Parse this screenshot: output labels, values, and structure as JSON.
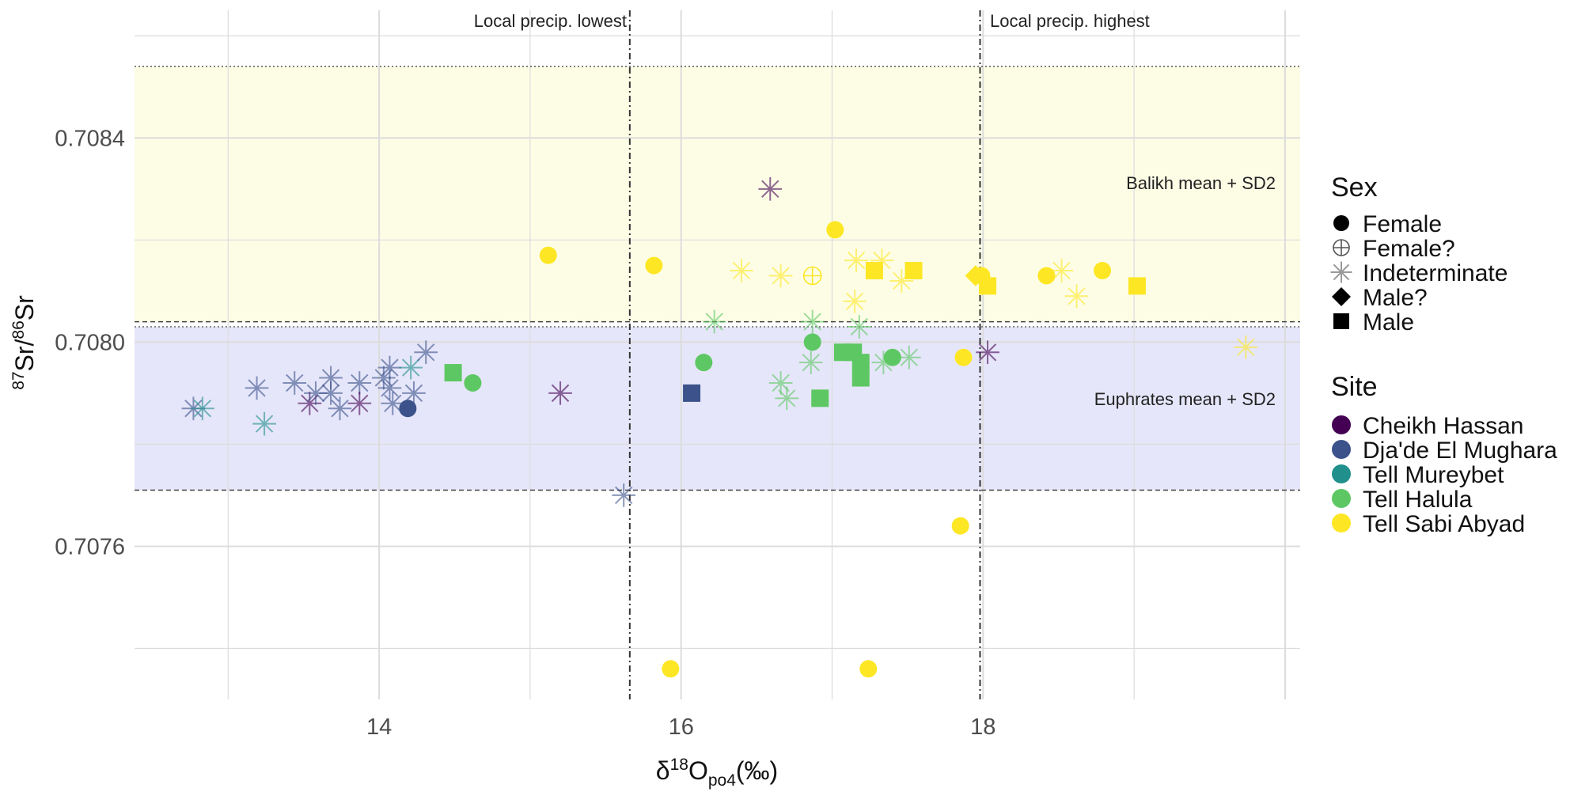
{
  "chart_data": {
    "type": "scatter",
    "xlabel": "δ18Opo4(‰)",
    "ylabel": "87Sr/86Sr",
    "xlim": [
      12.38,
      20.1
    ],
    "ylim": [
      0.7073,
      0.70865
    ],
    "x_ticks": [
      "14",
      "16",
      "18"
    ],
    "x_tick_values": [
      14,
      16,
      18
    ],
    "y_ticks": [
      "0.7076",
      "0.7080",
      "0.7084"
    ],
    "y_tick_values": [
      0.7076,
      0.708,
      0.7084
    ],
    "grid": true,
    "bands": [
      {
        "label": "Balikh mean + SD2",
        "y_from": 0.70804,
        "y_to": 0.70854,
        "color": "#fdfde6"
      },
      {
        "label": "Euphrates mean + SD2",
        "y_from": 0.70771,
        "y_to": 0.70803,
        "color": "#e6e6fa"
      }
    ],
    "vlines": [
      {
        "label": "Local precip. lowest",
        "x": 15.66
      },
      {
        "label": "Local precip. highest",
        "x": 17.98
      }
    ],
    "legend_placement": "right",
    "sex_legend": {
      "title": "Sex",
      "items": [
        {
          "name": "Female",
          "shape": "circle"
        },
        {
          "name": "Female?",
          "shape": "circle-plus"
        },
        {
          "name": "Indeterminate",
          "shape": "asterisk"
        },
        {
          "name": "Male?",
          "shape": "diamond"
        },
        {
          "name": "Male",
          "shape": "square"
        }
      ]
    },
    "site_legend": {
      "title": "Site",
      "items": [
        {
          "name": "Cheikh Hassan",
          "color": "#440154"
        },
        {
          "name": "Dja'de El Mughara",
          "color": "#3b528b"
        },
        {
          "name": "Tell Mureybet",
          "color": "#21908c"
        },
        {
          "name": "Tell Halula",
          "color": "#5dc863"
        },
        {
          "name": "Tell Sabi Abyad",
          "color": "#fde725"
        }
      ]
    },
    "points_columns": [
      "x",
      "y",
      "site",
      "sex"
    ],
    "points": [
      [
        12.77,
        0.70787,
        "Dja'de El Mughara",
        "Indeterminate"
      ],
      [
        12.83,
        0.70787,
        "Tell Mureybet",
        "Indeterminate"
      ],
      [
        13.19,
        0.70791,
        "Dja'de El Mughara",
        "Indeterminate"
      ],
      [
        13.24,
        0.70784,
        "Tell Mureybet",
        "Indeterminate"
      ],
      [
        13.44,
        0.70792,
        "Dja'de El Mughara",
        "Indeterminate"
      ],
      [
        13.54,
        0.70788,
        "Cheikh Hassan",
        "Indeterminate"
      ],
      [
        13.58,
        0.7079,
        "Dja'de El Mughara",
        "Indeterminate"
      ],
      [
        13.68,
        0.70793,
        "Dja'de El Mughara",
        "Indeterminate"
      ],
      [
        13.68,
        0.7079,
        "Dja'de El Mughara",
        "Indeterminate"
      ],
      [
        13.74,
        0.70787,
        "Dja'de El Mughara",
        "Indeterminate"
      ],
      [
        13.87,
        0.70792,
        "Dja'de El Mughara",
        "Indeterminate"
      ],
      [
        13.87,
        0.70788,
        "Cheikh Hassan",
        "Indeterminate"
      ],
      [
        14.03,
        0.70793,
        "Dja'de El Mughara",
        "Indeterminate"
      ],
      [
        14.07,
        0.70795,
        "Dja'de El Mughara",
        "Indeterminate"
      ],
      [
        14.07,
        0.70791,
        "Dja'de El Mughara",
        "Indeterminate"
      ],
      [
        14.09,
        0.70788,
        "Dja'de El Mughara",
        "Indeterminate"
      ],
      [
        14.21,
        0.70795,
        "Tell Mureybet",
        "Indeterminate"
      ],
      [
        14.23,
        0.7079,
        "Dja'de El Mughara",
        "Indeterminate"
      ],
      [
        14.31,
        0.70798,
        "Dja'de El Mughara",
        "Indeterminate"
      ],
      [
        14.19,
        0.70787,
        "Dja'de El Mughara",
        "Female"
      ],
      [
        14.49,
        0.70794,
        "Tell Halula",
        "Male"
      ],
      [
        14.62,
        0.70792,
        "Tell Halula",
        "Female"
      ],
      [
        15.2,
        0.7079,
        "Cheikh Hassan",
        "Indeterminate"
      ],
      [
        15.62,
        0.7077,
        "Dja'de El Mughara",
        "Indeterminate"
      ],
      [
        15.12,
        0.70817,
        "Tell Sabi Abyad",
        "Female"
      ],
      [
        15.82,
        0.70815,
        "Tell Sabi Abyad",
        "Female"
      ],
      [
        16.07,
        0.7079,
        "Dja'de El Mughara",
        "Male"
      ],
      [
        16.22,
        0.70804,
        "Tell Halula",
        "Indeterminate"
      ],
      [
        16.15,
        0.70796,
        "Tell Halula",
        "Female"
      ],
      [
        16.4,
        0.70814,
        "Tell Sabi Abyad",
        "Indeterminate"
      ],
      [
        16.59,
        0.7083,
        "Cheikh Hassan",
        "Indeterminate"
      ],
      [
        16.66,
        0.70813,
        "Tell Sabi Abyad",
        "Indeterminate"
      ],
      [
        16.66,
        0.70792,
        "Tell Halula",
        "Indeterminate"
      ],
      [
        16.7,
        0.70789,
        "Tell Halula",
        "Indeterminate"
      ],
      [
        16.87,
        0.70813,
        "Tell Sabi Abyad",
        "Female?"
      ],
      [
        16.87,
        0.70804,
        "Tell Halula",
        "Indeterminate"
      ],
      [
        16.86,
        0.70796,
        "Tell Halula",
        "Indeterminate"
      ],
      [
        16.87,
        0.708,
        "Tell Halula",
        "Female"
      ],
      [
        16.92,
        0.70789,
        "Tell Halula",
        "Male"
      ],
      [
        17.02,
        0.70822,
        "Tell Sabi Abyad",
        "Female"
      ],
      [
        17.07,
        0.70798,
        "Tell Halula",
        "Male"
      ],
      [
        17.14,
        0.70798,
        "Tell Halula",
        "Male"
      ],
      [
        17.19,
        0.70796,
        "Tell Halula",
        "Male"
      ],
      [
        17.19,
        0.70793,
        "Tell Halula",
        "Male"
      ],
      [
        17.18,
        0.70803,
        "Tell Halula",
        "Indeterminate"
      ],
      [
        17.16,
        0.70816,
        "Tell Sabi Abyad",
        "Indeterminate"
      ],
      [
        17.15,
        0.70808,
        "Tell Sabi Abyad",
        "Indeterminate"
      ],
      [
        17.33,
        0.70816,
        "Tell Sabi Abyad",
        "Indeterminate"
      ],
      [
        17.28,
        0.70814,
        "Tell Sabi Abyad",
        "Male"
      ],
      [
        17.4,
        0.70797,
        "Tell Halula",
        "Female"
      ],
      [
        17.34,
        0.70796,
        "Tell Halula",
        "Indeterminate"
      ],
      [
        17.51,
        0.70797,
        "Tell Halula",
        "Indeterminate"
      ],
      [
        17.46,
        0.70812,
        "Tell Sabi Abyad",
        "Indeterminate"
      ],
      [
        17.54,
        0.70814,
        "Tell Sabi Abyad",
        "Male"
      ],
      [
        17.87,
        0.70797,
        "Tell Sabi Abyad",
        "Female"
      ],
      [
        17.85,
        0.70764,
        "Tell Sabi Abyad",
        "Female"
      ],
      [
        17.95,
        0.70813,
        "Tell Sabi Abyad",
        "Male?"
      ],
      [
        17.99,
        0.70813,
        "Tell Sabi Abyad",
        "Female"
      ],
      [
        18.03,
        0.70811,
        "Tell Sabi Abyad",
        "Male"
      ],
      [
        18.03,
        0.70798,
        "Cheikh Hassan",
        "Indeterminate"
      ],
      [
        18.42,
        0.70813,
        "Tell Sabi Abyad",
        "Female"
      ],
      [
        18.52,
        0.70814,
        "Tell Sabi Abyad",
        "Indeterminate"
      ],
      [
        18.62,
        0.70809,
        "Tell Sabi Abyad",
        "Indeterminate"
      ],
      [
        18.79,
        0.70814,
        "Tell Sabi Abyad",
        "Female"
      ],
      [
        19.02,
        0.70811,
        "Tell Sabi Abyad",
        "Male"
      ],
      [
        19.74,
        0.70799,
        "Tell Sabi Abyad",
        "Indeterminate"
      ],
      [
        15.93,
        0.70736,
        "Tell Sabi Abyad",
        "Female"
      ],
      [
        17.24,
        0.70736,
        "Tell Sabi Abyad",
        "Female"
      ]
    ]
  }
}
